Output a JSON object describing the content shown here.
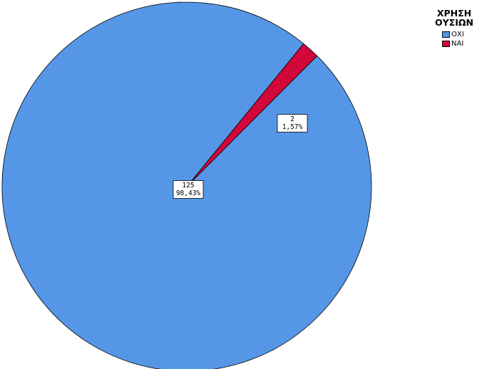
{
  "chart_data": {
    "type": "pie",
    "title": "",
    "legend": {
      "title_lines": [
        "ΧΡΗΣΗ",
        "ΟΥΣΙΩΝ"
      ],
      "placement": "top-right"
    },
    "slices": [
      {
        "name": "ΟΧΙ",
        "value": 125,
        "value_label": "125",
        "percent_label": "98,43%",
        "color": "#5597e6"
      },
      {
        "name": "ΝΑΙ",
        "value": 2,
        "value_label": "2",
        "percent_label": "1,57%",
        "color": "#d2073a"
      }
    ]
  }
}
